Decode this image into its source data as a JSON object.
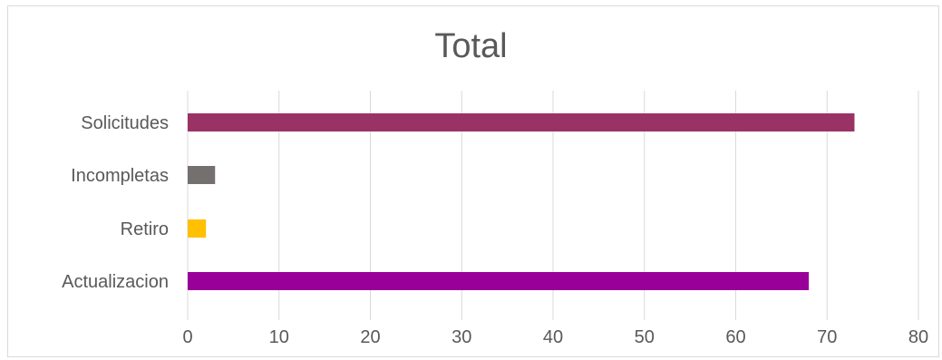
{
  "chart_data": {
    "type": "bar",
    "orientation": "horizontal",
    "title": "Total",
    "categories": [
      "Solicitudes",
      "Incompletas",
      "Retiro",
      "Actualizacion"
    ],
    "values": [
      73,
      3,
      2,
      68
    ],
    "colors": [
      "#993366",
      "#757070",
      "#FFC000",
      "#990099"
    ],
    "xlim": [
      0,
      80
    ],
    "xticks": [
      0,
      10,
      20,
      30,
      40,
      50,
      60,
      70,
      80
    ],
    "xlabel": "",
    "ylabel": "",
    "grid": "vertical",
    "legend": "none"
  }
}
